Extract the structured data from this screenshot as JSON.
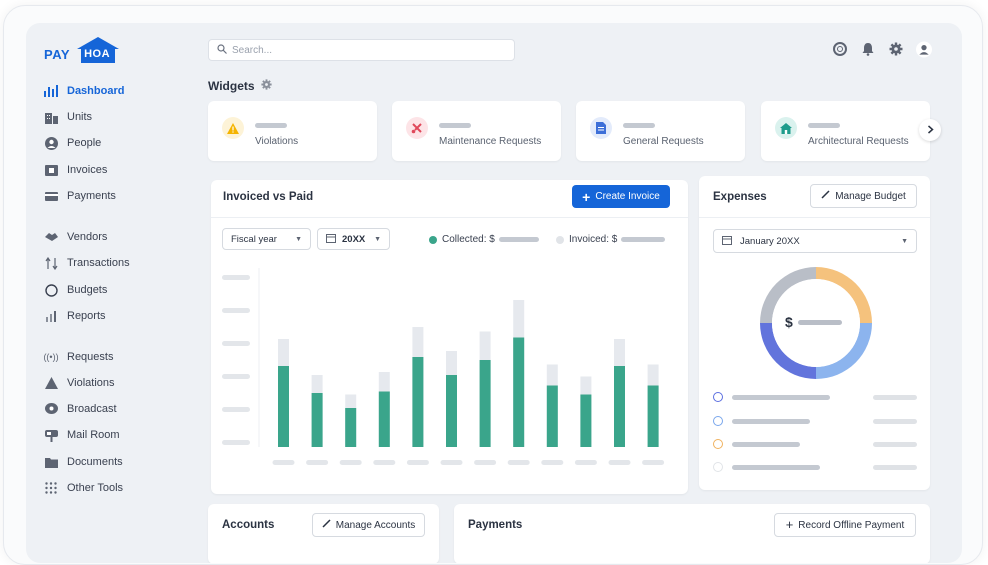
{
  "brand": {
    "pay": "PAY",
    "hoa": "HOA"
  },
  "search": {
    "placeholder": "Search..."
  },
  "sidebar": {
    "items": [
      {
        "label": "Dashboard",
        "icon": "chart-icon",
        "active": true
      },
      {
        "label": "Units",
        "icon": "building-icon"
      },
      {
        "label": "People",
        "icon": "person-icon"
      },
      {
        "label": "Invoices",
        "icon": "invoice-icon"
      },
      {
        "label": "Payments",
        "icon": "payments-icon"
      },
      {
        "label": "Vendors",
        "icon": "vendors-icon"
      },
      {
        "label": "Transactions",
        "icon": "transactions-icon"
      },
      {
        "label": "Budgets",
        "icon": "budget-icon"
      },
      {
        "label": "Reports",
        "icon": "reports-icon"
      },
      {
        "label": "Requests",
        "icon": "requests-icon"
      },
      {
        "label": "Violations",
        "icon": "warning-icon"
      },
      {
        "label": "Broadcast",
        "icon": "broadcast-icon"
      },
      {
        "label": "Mail Room",
        "icon": "mailbox-icon"
      },
      {
        "label": "Documents",
        "icon": "folder-icon"
      },
      {
        "label": "Other Tools",
        "icon": "grid-icon"
      }
    ]
  },
  "widgets": {
    "title": "Widgets",
    "items": [
      {
        "label": "Violations",
        "icon": "warning-icon",
        "color": "#f5b400",
        "bg": "#fdf3d7"
      },
      {
        "label": "Maintenance Requests",
        "icon": "tools-icon",
        "color": "#e0485a",
        "bg": "#fde4e7"
      },
      {
        "label": "General Requests",
        "icon": "document-icon",
        "color": "#3d6fd8",
        "bg": "#e3ebfb"
      },
      {
        "label": "Architectural Requests",
        "icon": "house-icon",
        "color": "#1e9c8c",
        "bg": "#daf2ee"
      }
    ]
  },
  "invoiced": {
    "title": "Invoiced vs Paid",
    "create_label": "Create Invoice",
    "period_select": "Fiscal year",
    "year_select": "20XX",
    "legend_collected": "Collected: $",
    "legend_invoiced": "Invoiced: $"
  },
  "expenses": {
    "title": "Expenses",
    "manage_label": "Manage Budget",
    "month_select": "January 20XX",
    "center_label": "$",
    "legend_colors": [
      "#5b6ee0",
      "#7aa7ec",
      "#f0b25f",
      "#e1e4e8"
    ]
  },
  "accounts": {
    "title": "Accounts",
    "manage_label": "Manage Accounts"
  },
  "payments": {
    "title": "Payments",
    "record_label": "Record Offline Payment"
  },
  "chart_data": {
    "type": "bar",
    "series": [
      {
        "values": [
          54,
          36,
          26,
          37,
          60,
          48,
          58,
          73,
          41,
          35,
          54,
          41
        ]
      },
      {
        "values": [
          72,
          48,
          35,
          50,
          80,
          64,
          77,
          98,
          55,
          47,
          72,
          55
        ]
      }
    ],
    "colors": {
      "collected": "#3aa58b",
      "invoiced": "#e6e9ee"
    },
    "ylim": [
      0,
      110
    ]
  }
}
